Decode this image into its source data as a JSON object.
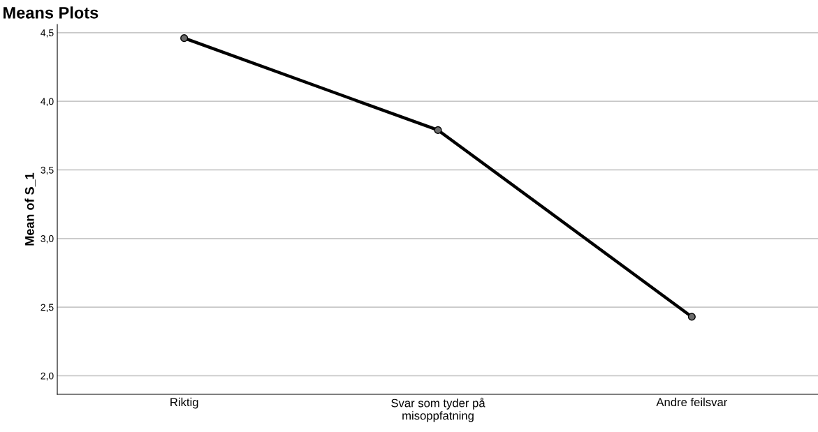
{
  "chart_data": {
    "type": "line",
    "title": "Means Plots",
    "ylabel": "Mean of S_1",
    "categories": [
      "Riktig",
      "Svar som tyder på\nmisoppfatning",
      "Andre feilsvar"
    ],
    "series": [
      {
        "color": "#000000",
        "values": [
          4.46,
          3.79,
          2.43
        ]
      }
    ],
    "ylim": [
      1.865,
      4.56
    ],
    "yticks": [
      {
        "value": 2.0,
        "label": "2,0"
      },
      {
        "value": 2.5,
        "label": "2,5"
      },
      {
        "value": 3.0,
        "label": "3,0"
      },
      {
        "value": 3.5,
        "label": "3,5"
      },
      {
        "value": 4.0,
        "label": "4,0"
      },
      {
        "value": 4.5,
        "label": "4,5"
      }
    ],
    "grid": "y",
    "marker": "circle",
    "line_style": "solid"
  }
}
